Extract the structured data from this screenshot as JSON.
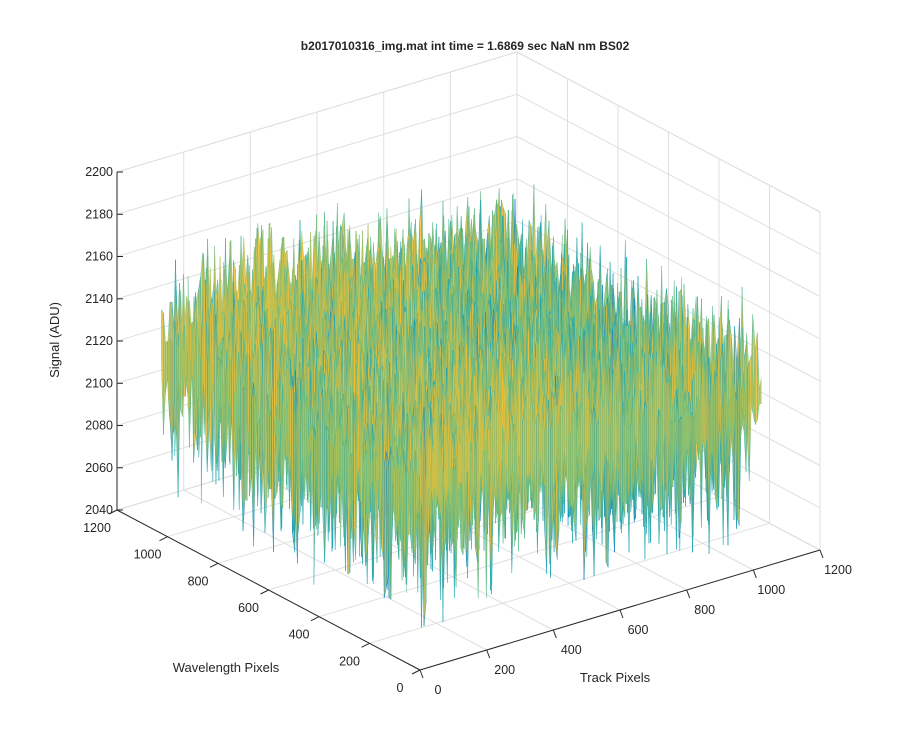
{
  "chart_data": {
    "type": "surface",
    "title": "b2017010316_img.mat int time = 1.6869 sec  NaN nm BS02",
    "xlabel": "Track Pixels",
    "ylabel": "Wavelength Pixels",
    "zlabel": "Signal (ADU)",
    "xlim": [
      0,
      1200
    ],
    "ylim": [
      0,
      1200
    ],
    "zlim": [
      2040,
      2200
    ],
    "x_ticks": [
      "0",
      "200",
      "400",
      "600",
      "800",
      "1000",
      "1200"
    ],
    "y_ticks": [
      "0",
      "200",
      "400",
      "600",
      "800",
      "1000",
      "1200"
    ],
    "z_ticks": [
      "2040",
      "2060",
      "2080",
      "2100",
      "2120",
      "2140",
      "2160",
      "2180",
      "2200"
    ],
    "grid": true,
    "surface_extent": {
      "track": [
        0,
        1024
      ],
      "wavelength": [
        0,
        1024
      ]
    },
    "signal_mean": 2130,
    "signal_noise_range": [
      2050,
      2185
    ],
    "colormap": [
      "#0b7fc9",
      "#1aa5b7",
      "#5cba8a",
      "#a9c25a",
      "#e3bd3d",
      "#f9c02e"
    ]
  }
}
